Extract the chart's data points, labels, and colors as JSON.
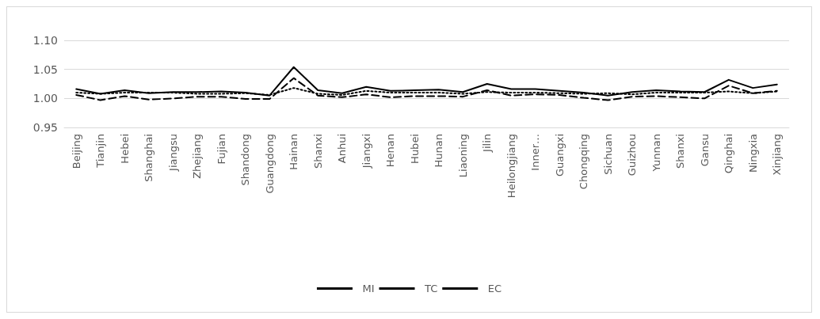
{
  "chart_data": {
    "type": "line",
    "categories": [
      "Beijing",
      "Tianjin",
      "Hebei",
      "Shanghai",
      "Jiangsu",
      "Zhejiang",
      "Fujian",
      "Shandong",
      "Guangdong",
      "Hainan",
      "Shanxi",
      "Anhui",
      "Jiangxi",
      "Henan",
      "Hubei",
      "Hunan",
      "Liaoning",
      "Jilin",
      "Heilongjiang",
      "Inner…",
      "Guangxi",
      "Chongqing",
      "Sichuan",
      "Guizhou",
      "Yunnan",
      "Shanxi",
      "Gansu",
      "Qinghai",
      "Ningxia",
      "Xinjiang"
    ],
    "series": [
      {
        "name": "MI",
        "color": "#000000",
        "line_style": "solid",
        "values": [
          1.016,
          1.008,
          1.014,
          1.009,
          1.011,
          1.011,
          1.012,
          1.01,
          1.005,
          1.054,
          1.014,
          1.009,
          1.02,
          1.013,
          1.014,
          1.015,
          1.011,
          1.025,
          1.016,
          1.016,
          1.013,
          1.01,
          1.005,
          1.011,
          1.014,
          1.012,
          1.011,
          1.032,
          1.018,
          1.024
        ]
      },
      {
        "name": "TC",
        "color": "#000000",
        "line_style": "dotted",
        "values": [
          1.01,
          1.008,
          1.01,
          1.01,
          1.01,
          1.008,
          1.008,
          1.009,
          1.006,
          1.018,
          1.008,
          1.006,
          1.013,
          1.01,
          1.01,
          1.01,
          1.008,
          1.011,
          1.01,
          1.01,
          1.009,
          1.008,
          1.009,
          1.007,
          1.01,
          1.01,
          1.01,
          1.012,
          1.009,
          1.012
        ]
      },
      {
        "name": "EC",
        "color": "#000000",
        "line_style": "dashed",
        "values": [
          1.006,
          0.997,
          1.004,
          0.998,
          1.0,
          1.003,
          1.003,
          0.999,
          0.999,
          1.035,
          1.005,
          1.002,
          1.007,
          1.002,
          1.004,
          1.004,
          1.003,
          1.014,
          1.005,
          1.007,
          1.006,
          1.001,
          0.997,
          1.003,
          1.004,
          1.002,
          1.0,
          1.022,
          1.009,
          1.013
        ]
      }
    ],
    "ylim": [
      0.95,
      1.1
    ],
    "yticks": [
      {
        "value": 0.95,
        "label": "0.95"
      },
      {
        "value": 1.0,
        "label": "1.00"
      },
      {
        "value": 1.05,
        "label": "1.05"
      },
      {
        "value": 1.1,
        "label": "1.10"
      }
    ],
    "grid": "y",
    "legend": "bottom",
    "marker": "none"
  }
}
